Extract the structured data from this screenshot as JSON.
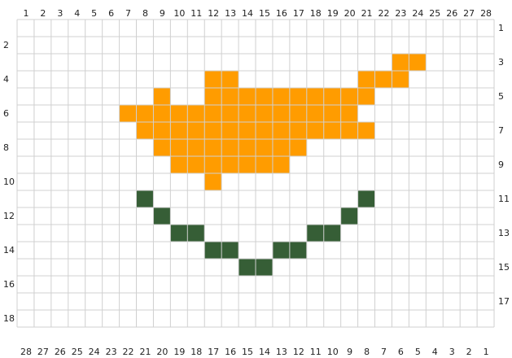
{
  "grid": {
    "columns": 28,
    "rows": 18,
    "grid_color": "#d0d0d0",
    "cell_color_empty": "#ffffff"
  },
  "colors": {
    "orange": "#ff9c00",
    "green": "#365e36"
  },
  "labels": {
    "top": [
      "1",
      "2",
      "3",
      "4",
      "5",
      "6",
      "7",
      "8",
      "9",
      "10",
      "11",
      "12",
      "13",
      "14",
      "15",
      "16",
      "17",
      "18",
      "19",
      "20",
      "21",
      "22",
      "23",
      "24",
      "25",
      "26",
      "27",
      "28"
    ],
    "bottom": [
      "28",
      "27",
      "26",
      "25",
      "24",
      "23",
      "22",
      "21",
      "20",
      "19",
      "18",
      "17",
      "16",
      "15",
      "14",
      "13",
      "12",
      "11",
      "10",
      "9",
      "8",
      "7",
      "6",
      "5",
      "4",
      "3",
      "2",
      "1"
    ],
    "left_even_rows": [
      "2",
      "4",
      "6",
      "8",
      "10",
      "12",
      "14",
      "16",
      "18"
    ],
    "right_odd_rows": [
      "1",
      "3",
      "5",
      "7",
      "9",
      "11",
      "13",
      "15",
      "17"
    ]
  },
  "filled_cells": {
    "orange": [
      [
        3,
        23
      ],
      [
        3,
        24
      ],
      [
        4,
        12
      ],
      [
        4,
        13
      ],
      [
        4,
        21
      ],
      [
        4,
        22
      ],
      [
        4,
        23
      ],
      [
        5,
        9
      ],
      [
        5,
        12
      ],
      [
        5,
        13
      ],
      [
        5,
        14
      ],
      [
        5,
        15
      ],
      [
        5,
        16
      ],
      [
        5,
        17
      ],
      [
        5,
        18
      ],
      [
        5,
        19
      ],
      [
        5,
        20
      ],
      [
        5,
        21
      ],
      [
        6,
        7
      ],
      [
        6,
        8
      ],
      [
        6,
        9
      ],
      [
        6,
        10
      ],
      [
        6,
        11
      ],
      [
        6,
        12
      ],
      [
        6,
        13
      ],
      [
        6,
        14
      ],
      [
        6,
        15
      ],
      [
        6,
        16
      ],
      [
        6,
        17
      ],
      [
        6,
        18
      ],
      [
        6,
        19
      ],
      [
        6,
        20
      ],
      [
        7,
        8
      ],
      [
        7,
        9
      ],
      [
        7,
        10
      ],
      [
        7,
        11
      ],
      [
        7,
        12
      ],
      [
        7,
        13
      ],
      [
        7,
        14
      ],
      [
        7,
        15
      ],
      [
        7,
        16
      ],
      [
        7,
        17
      ],
      [
        7,
        18
      ],
      [
        7,
        19
      ],
      [
        7,
        20
      ],
      [
        7,
        21
      ],
      [
        8,
        9
      ],
      [
        8,
        10
      ],
      [
        8,
        11
      ],
      [
        8,
        12
      ],
      [
        8,
        13
      ],
      [
        8,
        14
      ],
      [
        8,
        15
      ],
      [
        8,
        16
      ],
      [
        8,
        17
      ],
      [
        9,
        10
      ],
      [
        9,
        11
      ],
      [
        9,
        12
      ],
      [
        9,
        13
      ],
      [
        9,
        14
      ],
      [
        9,
        15
      ],
      [
        9,
        16
      ],
      [
        10,
        12
      ]
    ],
    "green": [
      [
        11,
        8
      ],
      [
        11,
        21
      ],
      [
        12,
        9
      ],
      [
        12,
        20
      ],
      [
        13,
        10
      ],
      [
        13,
        11
      ],
      [
        13,
        18
      ],
      [
        13,
        19
      ],
      [
        14,
        12
      ],
      [
        14,
        13
      ],
      [
        14,
        16
      ],
      [
        14,
        17
      ],
      [
        15,
        14
      ],
      [
        15,
        15
      ]
    ]
  }
}
